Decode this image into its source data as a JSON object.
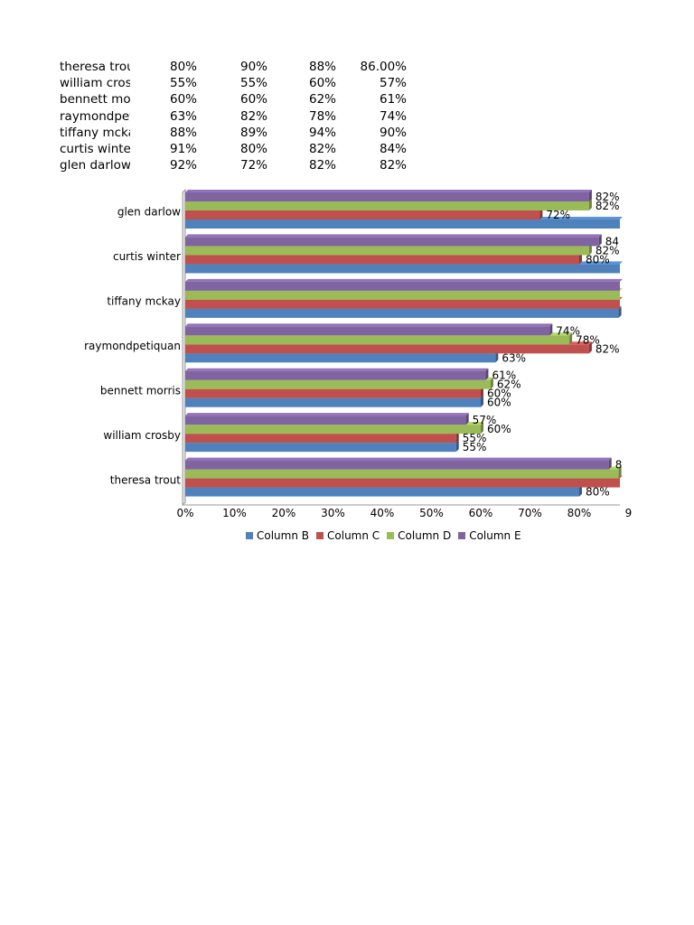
{
  "sheet": {
    "rows": [
      [
        "theresa trout",
        "80%",
        "90%",
        "88%",
        "86.00%"
      ],
      [
        "william crosby",
        "55%",
        "55%",
        "60%",
        "57%"
      ],
      [
        "bennett morris",
        "60%",
        "60%",
        "62%",
        "61%"
      ],
      [
        "raymondpetiquan",
        "63%",
        "82%",
        "78%",
        "74%"
      ],
      [
        "tiffany mckay",
        "88%",
        "89%",
        "94%",
        "90%"
      ],
      [
        "curtis winter",
        "91%",
        "80%",
        "82%",
        "84%"
      ],
      [
        "glen darlow",
        "92%",
        "72%",
        "82%",
        "82%"
      ]
    ]
  },
  "chart_data": {
    "type": "bar",
    "orientation": "horizontal",
    "categories": [
      "theresa trout",
      "william crosby",
      "bennett morris",
      "raymondpetiquan",
      "tiffany mckay",
      "curtis winter",
      "glen darlow"
    ],
    "series": [
      {
        "name": "Column B",
        "color": "#4f81bd",
        "values": [
          80,
          55,
          60,
          63,
          88,
          91,
          92
        ]
      },
      {
        "name": "Column C",
        "color": "#c0504d",
        "values": [
          90,
          55,
          60,
          82,
          89,
          80,
          72
        ]
      },
      {
        "name": "Column D",
        "color": "#9bbb59",
        "values": [
          88,
          60,
          62,
          78,
          94,
          82,
          82
        ]
      },
      {
        "name": "Column E",
        "color": "#8064a2",
        "values": [
          86,
          57,
          61,
          74,
          90,
          84,
          82
        ]
      }
    ],
    "data_labels": [
      [
        "80%",
        "",
        "",
        "8"
      ],
      [
        "55%",
        "55%",
        "60%",
        "57%"
      ],
      [
        "60%",
        "60%",
        "62%",
        "61%"
      ],
      [
        "63%",
        "82%",
        "78%",
        "74%"
      ],
      [
        "",
        "",
        "",
        ""
      ],
      [
        "",
        "80%",
        "82%",
        "84"
      ],
      [
        "",
        "72%",
        "82%",
        "82%"
      ]
    ],
    "x_ticks": [
      "0%",
      "10%",
      "20%",
      "30%",
      "40%",
      "50%",
      "60%",
      "70%",
      "80%",
      "9"
    ],
    "xlim": [
      0,
      100
    ],
    "legend_position": "bottom"
  }
}
